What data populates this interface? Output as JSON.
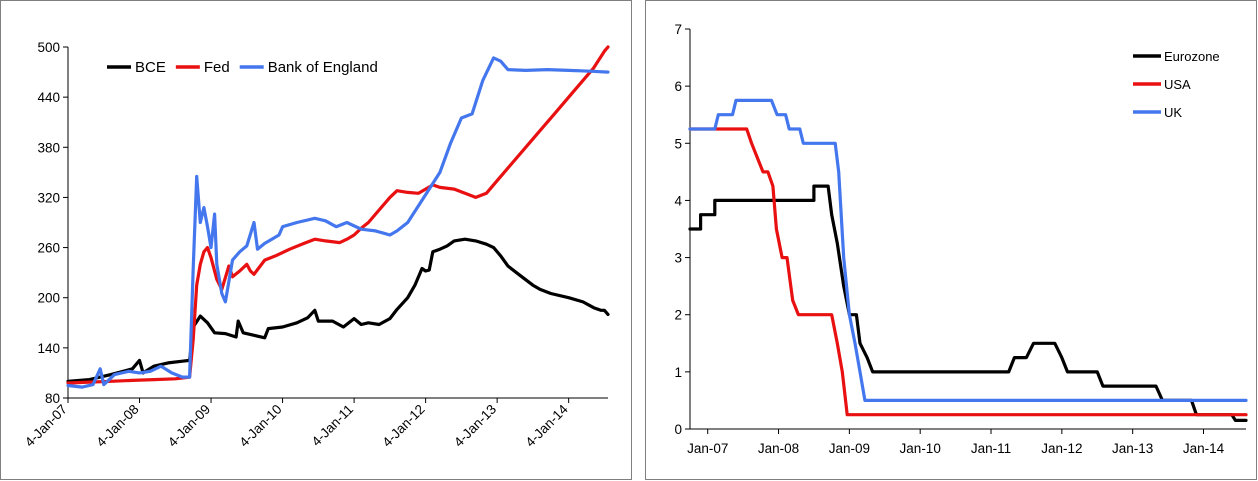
{
  "chart_data": [
    {
      "type": "line",
      "title": "",
      "xlabel": "",
      "ylabel": "",
      "ylim": [
        80,
        500
      ],
      "y_ticks": [
        80,
        140,
        200,
        260,
        320,
        380,
        440,
        500
      ],
      "x_tick_labels": [
        "4-Jan-07",
        "4-Jan-08",
        "4-Jan-09",
        "4-Jan-10",
        "4-Jan-11",
        "4-Jan-12",
        "4-Jan-13",
        "4-Jan-14"
      ],
      "x_unit": "years since 4-Jan-07",
      "xlim": [
        0,
        7.55
      ],
      "grid": false,
      "legend_position": "top-left",
      "series": [
        {
          "name": "BCE",
          "color": "#000000",
          "points": [
            [
              0,
              100
            ],
            [
              0.3,
              102
            ],
            [
              0.6,
              108
            ],
            [
              0.9,
              115
            ],
            [
              1.0,
              125
            ],
            [
              1.05,
              110
            ],
            [
              1.2,
              118
            ],
            [
              1.4,
              122
            ],
            [
              1.6,
              124
            ],
            [
              1.7,
              125
            ],
            [
              1.75,
              165
            ],
            [
              1.85,
              178
            ],
            [
              1.95,
              170
            ],
            [
              2.05,
              158
            ],
            [
              2.2,
              157
            ],
            [
              2.35,
              153
            ],
            [
              2.38,
              172
            ],
            [
              2.45,
              158
            ],
            [
              2.6,
              155
            ],
            [
              2.75,
              152
            ],
            [
              2.8,
              163
            ],
            [
              3.0,
              165
            ],
            [
              3.2,
              170
            ],
            [
              3.35,
              176
            ],
            [
              3.45,
              185
            ],
            [
              3.5,
              172
            ],
            [
              3.7,
              172
            ],
            [
              3.85,
              165
            ],
            [
              4.0,
              175
            ],
            [
              4.1,
              168
            ],
            [
              4.2,
              170
            ],
            [
              4.35,
              168
            ],
            [
              4.5,
              175
            ],
            [
              4.6,
              186
            ],
            [
              4.75,
              200
            ],
            [
              4.85,
              215
            ],
            [
              4.95,
              235
            ],
            [
              5.0,
              232
            ],
            [
              5.05,
              233
            ],
            [
              5.1,
              255
            ],
            [
              5.2,
              258
            ],
            [
              5.3,
              262
            ],
            [
              5.4,
              268
            ],
            [
              5.55,
              270
            ],
            [
              5.7,
              268
            ],
            [
              5.85,
              264
            ],
            [
              5.95,
              260
            ],
            [
              6.05,
              250
            ],
            [
              6.15,
              238
            ],
            [
              6.3,
              228
            ],
            [
              6.5,
              215
            ],
            [
              6.6,
              210
            ],
            [
              6.75,
              205
            ],
            [
              7.0,
              200
            ],
            [
              7.2,
              195
            ],
            [
              7.35,
              188
            ],
            [
              7.45,
              185
            ],
            [
              7.5,
              185
            ],
            [
              7.55,
              180
            ]
          ]
        },
        {
          "name": "Fed",
          "color": "#e81010",
          "points": [
            [
              0,
              98
            ],
            [
              0.3,
              99
            ],
            [
              0.6,
              100
            ],
            [
              0.9,
              101
            ],
            [
              1.2,
              102
            ],
            [
              1.5,
              103
            ],
            [
              1.7,
              105
            ],
            [
              1.75,
              150
            ],
            [
              1.8,
              215
            ],
            [
              1.85,
              240
            ],
            [
              1.9,
              255
            ],
            [
              1.95,
              260
            ],
            [
              2.0,
              248
            ],
            [
              2.08,
              222
            ],
            [
              2.15,
              210
            ],
            [
              2.25,
              238
            ],
            [
              2.3,
              225
            ],
            [
              2.4,
              232
            ],
            [
              2.5,
              240
            ],
            [
              2.55,
              232
            ],
            [
              2.6,
              228
            ],
            [
              2.75,
              245
            ],
            [
              2.9,
              250
            ],
            [
              3.1,
              258
            ],
            [
              3.3,
              265
            ],
            [
              3.45,
              270
            ],
            [
              3.6,
              268
            ],
            [
              3.8,
              266
            ],
            [
              3.9,
              270
            ],
            [
              4.0,
              275
            ],
            [
              4.1,
              283
            ],
            [
              4.2,
              290
            ],
            [
              4.35,
              305
            ],
            [
              4.5,
              320
            ],
            [
              4.6,
              328
            ],
            [
              4.75,
              326
            ],
            [
              4.9,
              325
            ],
            [
              5.0,
              330
            ],
            [
              5.1,
              335
            ],
            [
              5.2,
              332
            ],
            [
              5.4,
              330
            ],
            [
              5.55,
              325
            ],
            [
              5.7,
              320
            ],
            [
              5.85,
              325
            ],
            [
              6.0,
              340
            ],
            [
              6.2,
              360
            ],
            [
              6.5,
              390
            ],
            [
              6.8,
              420
            ],
            [
              7.1,
              450
            ],
            [
              7.35,
              475
            ],
            [
              7.5,
              495
            ],
            [
              7.55,
              500
            ]
          ]
        },
        {
          "name": "Bank of England",
          "color": "#4477ee",
          "points": [
            [
              0,
              95
            ],
            [
              0.2,
              93
            ],
            [
              0.35,
              96
            ],
            [
              0.45,
              115
            ],
            [
              0.5,
              96
            ],
            [
              0.65,
              108
            ],
            [
              0.85,
              112
            ],
            [
              1.0,
              110
            ],
            [
              1.15,
              112
            ],
            [
              1.3,
              118
            ],
            [
              1.45,
              110
            ],
            [
              1.6,
              105
            ],
            [
              1.7,
              105
            ],
            [
              1.75,
              235
            ],
            [
              1.8,
              345
            ],
            [
              1.85,
              290
            ],
            [
              1.9,
              308
            ],
            [
              1.95,
              285
            ],
            [
              2.0,
              260
            ],
            [
              2.05,
              300
            ],
            [
              2.08,
              240
            ],
            [
              2.15,
              205
            ],
            [
              2.2,
              195
            ],
            [
              2.3,
              245
            ],
            [
              2.4,
              255
            ],
            [
              2.5,
              262
            ],
            [
              2.6,
              290
            ],
            [
              2.65,
              258
            ],
            [
              2.75,
              265
            ],
            [
              2.85,
              270
            ],
            [
              2.95,
              275
            ],
            [
              3.0,
              285
            ],
            [
              3.2,
              290
            ],
            [
              3.45,
              295
            ],
            [
              3.6,
              292
            ],
            [
              3.75,
              285
            ],
            [
              3.9,
              290
            ],
            [
              4.1,
              282
            ],
            [
              4.3,
              280
            ],
            [
              4.5,
              275
            ],
            [
              4.6,
              280
            ],
            [
              4.75,
              290
            ],
            [
              4.9,
              310
            ],
            [
              5.05,
              330
            ],
            [
              5.2,
              350
            ],
            [
              5.35,
              385
            ],
            [
              5.5,
              415
            ],
            [
              5.65,
              420
            ],
            [
              5.8,
              460
            ],
            [
              5.95,
              487
            ],
            [
              6.05,
              483
            ],
            [
              6.15,
              473
            ],
            [
              6.4,
              472
            ],
            [
              6.7,
              473
            ],
            [
              7.0,
              472
            ],
            [
              7.3,
              471
            ],
            [
              7.55,
              470
            ]
          ]
        }
      ]
    },
    {
      "type": "line",
      "title": "",
      "xlabel": "",
      "ylabel": "",
      "ylim": [
        0,
        7
      ],
      "y_ticks": [
        0,
        1,
        2,
        3,
        4,
        5,
        6,
        7
      ],
      "x_tick_labels": [
        "Jan-07",
        "Jan-08",
        "Jan-09",
        "Jan-10",
        "Jan-11",
        "Jan-12",
        "Jan-13",
        "Jan-14"
      ],
      "x_unit": "years since Jan-07",
      "xlim": [
        -0.25,
        7.6
      ],
      "grid": false,
      "legend_position": "top-right",
      "series": [
        {
          "name": "Eurozone",
          "color": "#000000",
          "points": [
            [
              -0.25,
              3.5
            ],
            [
              -0.1,
              3.5
            ],
            [
              -0.1,
              3.75
            ],
            [
              0.1,
              3.75
            ],
            [
              0.1,
              4.0
            ],
            [
              0.8,
              4.0
            ],
            [
              1.5,
              4.0
            ],
            [
              1.5,
              4.25
            ],
            [
              1.7,
              4.25
            ],
            [
              1.75,
              3.75
            ],
            [
              1.83,
              3.25
            ],
            [
              1.92,
              2.5
            ],
            [
              2.0,
              2.0
            ],
            [
              2.1,
              2.0
            ],
            [
              2.15,
              1.5
            ],
            [
              2.25,
              1.25
            ],
            [
              2.33,
              1.0
            ],
            [
              4.25,
              1.0
            ],
            [
              4.33,
              1.25
            ],
            [
              4.5,
              1.25
            ],
            [
              4.6,
              1.5
            ],
            [
              4.9,
              1.5
            ],
            [
              5.0,
              1.25
            ],
            [
              5.08,
              1.0
            ],
            [
              5.5,
              1.0
            ],
            [
              5.58,
              0.75
            ],
            [
              6.33,
              0.75
            ],
            [
              6.42,
              0.5
            ],
            [
              6.83,
              0.5
            ],
            [
              6.9,
              0.25
            ],
            [
              7.4,
              0.25
            ],
            [
              7.45,
              0.15
            ],
            [
              7.6,
              0.15
            ]
          ]
        },
        {
          "name": "USA",
          "color": "#e81010",
          "points": [
            [
              -0.25,
              5.25
            ],
            [
              0.55,
              5.25
            ],
            [
              0.62,
              5.0
            ],
            [
              0.7,
              4.75
            ],
            [
              0.78,
              4.5
            ],
            [
              0.85,
              4.5
            ],
            [
              0.92,
              4.25
            ],
            [
              0.97,
              3.5
            ],
            [
              1.05,
              3.0
            ],
            [
              1.12,
              3.0
            ],
            [
              1.2,
              2.25
            ],
            [
              1.28,
              2.0
            ],
            [
              1.75,
              2.0
            ],
            [
              1.83,
              1.5
            ],
            [
              1.9,
              1.0
            ],
            [
              1.97,
              0.25
            ],
            [
              7.6,
              0.25
            ]
          ]
        },
        {
          "name": "UK",
          "color": "#4477ee",
          "points": [
            [
              -0.25,
              5.25
            ],
            [
              0.1,
              5.25
            ],
            [
              0.15,
              5.5
            ],
            [
              0.35,
              5.5
            ],
            [
              0.4,
              5.75
            ],
            [
              0.9,
              5.75
            ],
            [
              0.98,
              5.5
            ],
            [
              1.1,
              5.5
            ],
            [
              1.15,
              5.25
            ],
            [
              1.3,
              5.25
            ],
            [
              1.35,
              5.0
            ],
            [
              1.8,
              5.0
            ],
            [
              1.85,
              4.5
            ],
            [
              1.92,
              3.0
            ],
            [
              2.0,
              2.0
            ],
            [
              2.08,
              1.5
            ],
            [
              2.15,
              1.0
            ],
            [
              2.22,
              0.5
            ],
            [
              7.6,
              0.5
            ]
          ]
        }
      ]
    }
  ]
}
